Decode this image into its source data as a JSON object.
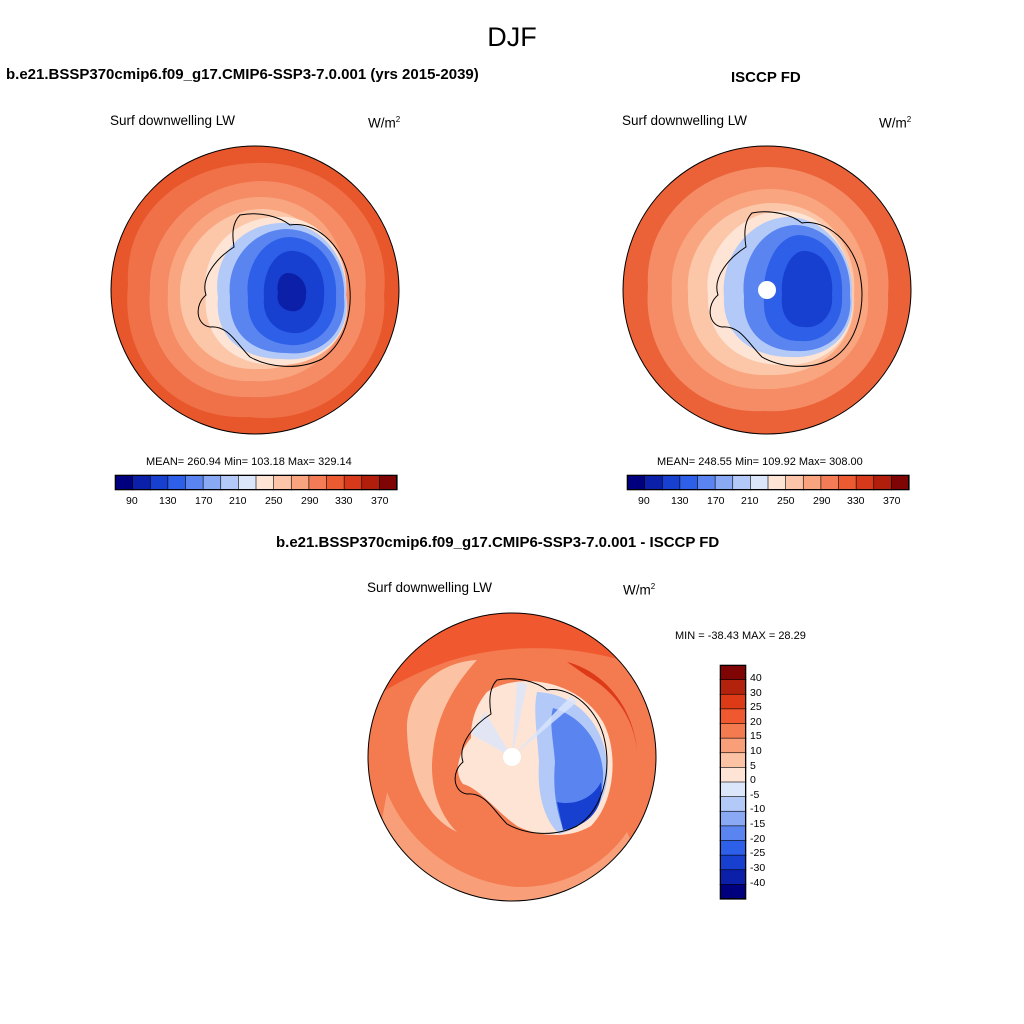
{
  "figure": {
    "season": "DJF"
  },
  "panels": [
    {
      "id": "model",
      "title": "b.e21.BSSP370cmip6.f09_g17.CMIP6-SSP3-7.0.001 (yrs 2015-2039)",
      "variable": "Surf downwelling LW",
      "units_base": "W/m",
      "units_exp": "2",
      "stats": "MEAN= 260.94  Min= 103.18  Max= 329.14"
    },
    {
      "id": "obs",
      "title": "ISCCP FD",
      "variable": "Surf downwelling LW",
      "units_base": "W/m",
      "units_exp": "2",
      "stats": "MEAN= 248.55  Min= 109.92  Max= 308.00"
    },
    {
      "id": "diff",
      "title": "b.e21.BSSP370cmip6.f09_g17.CMIP6-SSP3-7.0.001 - ISCCP FD",
      "variable": "Surf downwelling LW",
      "units_base": "W/m",
      "units_exp": "2",
      "stats": "MIN = -38.43 MAX =  28.29"
    }
  ],
  "colorbar_abs": {
    "colors": [
      "#00007f",
      "#0b1fa8",
      "#1740d1",
      "#2e5fe8",
      "#5a85f0",
      "#8aa9f5",
      "#b3c9f8",
      "#dbe6fb",
      "#fde4d5",
      "#fcc5aa",
      "#f9a47e",
      "#f37b55",
      "#eb5a30",
      "#d8391a",
      "#b11e0c",
      "#7f0505"
    ],
    "tick_labels": [
      "90",
      "130",
      "170",
      "210",
      "250",
      "290",
      "330",
      "370"
    ]
  },
  "colorbar_diff": {
    "colors": [
      "#7f0505",
      "#b3220d",
      "#dd3a18",
      "#f0592f",
      "#f47a50",
      "#f89e78",
      "#fbc2a4",
      "#fde4d5",
      "#dbe6fb",
      "#b3c9f8",
      "#8aa9f5",
      "#5a85f0",
      "#2e5fe8",
      "#1740d1",
      "#0b1fa8",
      "#00007f"
    ],
    "tick_labels": [
      "40",
      "30",
      "25",
      "20",
      "15",
      "10",
      "5",
      "0",
      "-5",
      "-10",
      "-15",
      "-20",
      "-25",
      "-30",
      "-40"
    ]
  }
}
